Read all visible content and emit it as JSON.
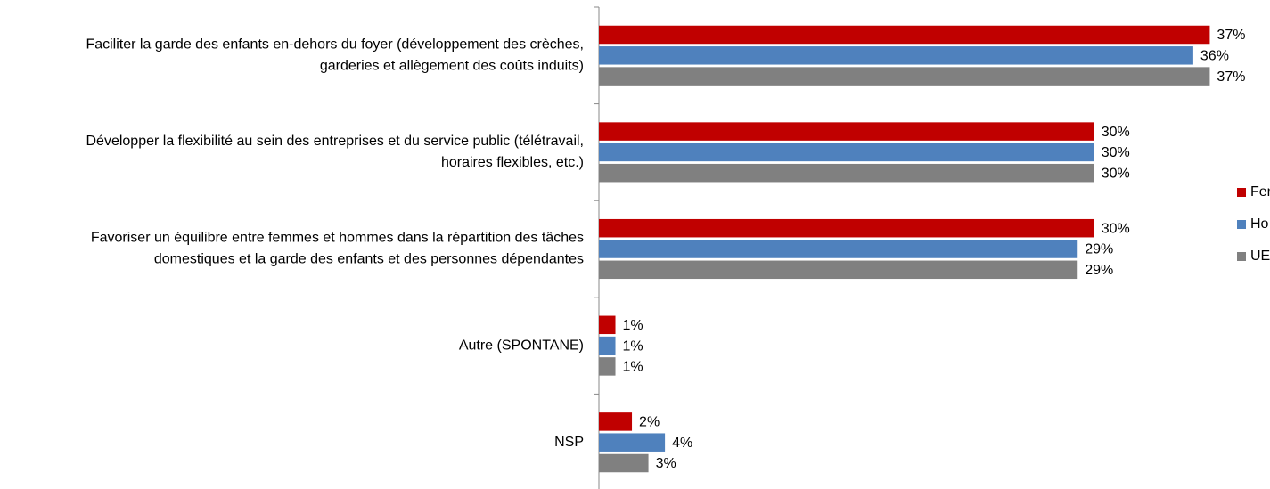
{
  "chart_data": {
    "type": "hbar",
    "categories": [
      [
        "Faciliter la garde des enfants en-dehors du foyer (développement des crèches,",
        "garderies et allègement des coûts induits)"
      ],
      [
        "Développer la flexibilité au sein des entreprises et du service public (télétravail,",
        "horaires flexibles, etc.)"
      ],
      [
        "Favoriser un équilibre entre femmes et hommes dans la répartition des tâches",
        "domestiques et la garde des enfants et des personnes dépendantes"
      ],
      [
        "Autre (SPONTANE)"
      ],
      [
        "NSP"
      ]
    ],
    "series": [
      {
        "name": "Fem",
        "color": "#c00000",
        "values": [
          37,
          30,
          30,
          1,
          2
        ],
        "value_labels": [
          "37%",
          "30%",
          "30%",
          "1%",
          "2%"
        ]
      },
      {
        "name": "Ho",
        "color": "#4f81bd",
        "values": [
          36,
          30,
          29,
          1,
          4
        ],
        "value_labels": [
          "36%",
          "30%",
          "29%",
          "1%",
          "4%"
        ]
      },
      {
        "name": "UE",
        "color": "#808080",
        "values": [
          37,
          30,
          29,
          1,
          3
        ],
        "value_labels": [
          "37%",
          "30%",
          "29%",
          "1%",
          "3%"
        ]
      }
    ],
    "xlim": [
      0,
      40
    ],
    "legend": "right"
  }
}
